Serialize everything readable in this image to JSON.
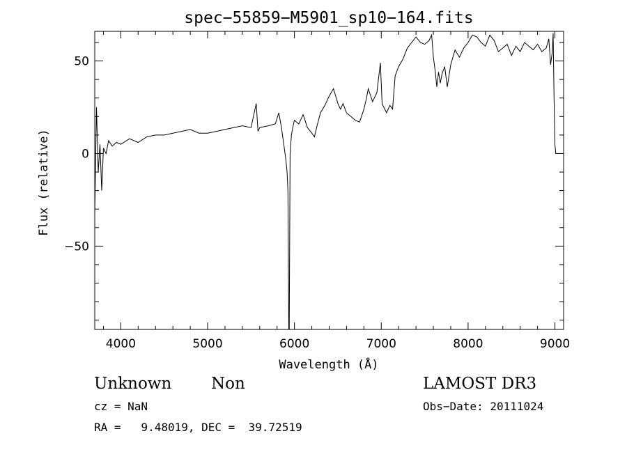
{
  "chart_data": {
    "type": "line",
    "title": "spec−55859−M5901_sp10−164.fits",
    "xlabel": "Wavelength (Å)",
    "ylabel": "Flux (relative)",
    "xlim": [
      3700,
      9100
    ],
    "ylim": [
      -95,
      66
    ],
    "xticks": [
      4000,
      5000,
      6000,
      7000,
      8000,
      9000
    ],
    "xtick_labels": [
      "4000",
      "5000",
      "6000",
      "7000",
      "8000",
      "9000"
    ],
    "yticks": [
      -50,
      0,
      50
    ],
    "ytick_labels": [
      "−50",
      "0",
      "50"
    ],
    "grid": false,
    "series": [
      {
        "name": "flux",
        "x": [
          3700,
          3720,
          3740,
          3760,
          3780,
          3800,
          3830,
          3860,
          3900,
          3950,
          4000,
          4100,
          4200,
          4300,
          4400,
          4500,
          4600,
          4700,
          4800,
          4900,
          5000,
          5100,
          5200,
          5300,
          5400,
          5500,
          5560,
          5580,
          5600,
          5700,
          5780,
          5820,
          5850,
          5880,
          5900,
          5915,
          5925,
          5935,
          5940,
          5950,
          5965,
          5980,
          6000,
          6050,
          6100,
          6150,
          6200,
          6230,
          6260,
          6300,
          6350,
          6400,
          6450,
          6500,
          6530,
          6560,
          6600,
          6650,
          6700,
          6750,
          6800,
          6830,
          6850,
          6900,
          6950,
          6990,
          7010,
          7030,
          7060,
          7100,
          7130,
          7160,
          7200,
          7250,
          7300,
          7350,
          7400,
          7450,
          7500,
          7550,
          7580,
          7600,
          7620,
          7640,
          7660,
          7680,
          7700,
          7730,
          7760,
          7800,
          7850,
          7900,
          7950,
          8000,
          8050,
          8100,
          8150,
          8200,
          8250,
          8300,
          8350,
          8400,
          8450,
          8500,
          8550,
          8600,
          8650,
          8700,
          8750,
          8800,
          8850,
          8900,
          8930,
          8950,
          8970,
          8980,
          8990,
          9000,
          9010
        ],
        "values": [
          -33,
          25,
          -10,
          5,
          -20,
          3,
          0,
          7,
          4,
          6,
          5,
          8,
          6,
          9,
          10,
          10,
          11,
          12,
          13,
          11,
          11,
          12,
          13,
          14,
          15,
          14,
          27,
          12,
          14,
          15,
          16,
          22,
          14,
          4,
          -3,
          -10,
          -20,
          -95,
          -95,
          0,
          10,
          14,
          18,
          16,
          21,
          14,
          11,
          9,
          15,
          22,
          26,
          31,
          35,
          27,
          24,
          27,
          22,
          20,
          18,
          17,
          24,
          30,
          35,
          28,
          33,
          49,
          27,
          25,
          22,
          26,
          24,
          42,
          47,
          51,
          57,
          60,
          63,
          60,
          59,
          61,
          64,
          52,
          45,
          36,
          44,
          38,
          43,
          47,
          36,
          48,
          56,
          52,
          57,
          60,
          64,
          63,
          60,
          58,
          64,
          61,
          55,
          57,
          59,
          53,
          58,
          55,
          60,
          58,
          56,
          59,
          55,
          57,
          62,
          48,
          55,
          65,
          30,
          5,
          0
        ]
      }
    ]
  },
  "info": {
    "object_class": "Unknown",
    "object_subclass": "Non",
    "survey": "LAMOST DR3",
    "cz": "cz = NaN",
    "obs_date": "Obs−Date: 20111024",
    "coords": "RA =   9.48019, DEC =  39.72519"
  }
}
